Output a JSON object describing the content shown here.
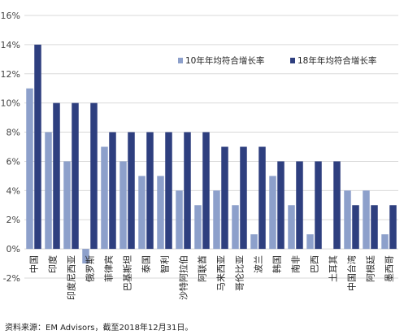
{
  "chart_data": {
    "type": "bar",
    "title": "",
    "xlabel": "",
    "ylabel": "",
    "ylim": [
      -2,
      16
    ],
    "yticks": [
      -2,
      0,
      2,
      4,
      6,
      8,
      10,
      12,
      14,
      16
    ],
    "ytick_labels": [
      "-2%",
      "0%",
      "2%",
      "4%",
      "6%",
      "8%",
      "10%",
      "12%",
      "14%",
      "16%"
    ],
    "grid": true,
    "legend_position": "top-right",
    "categories": [
      "中国",
      "印度",
      "印度尼西亚",
      "俄罗斯",
      "菲律宾",
      "巴基斯坦",
      "泰国",
      "智利",
      "沙特阿拉伯",
      "阿联酋",
      "马来西亚",
      "哥伦比亚",
      "波兰",
      "韩国",
      "南非",
      "巴西",
      "土耳其",
      "中国台湾",
      "阿根廷",
      "墨西哥"
    ],
    "series": [
      {
        "name": "10年年均符合增长率",
        "color": "#8da0cb",
        "values": [
          11,
          8,
          6,
          -1,
          7,
          6,
          5,
          5,
          4,
          3,
          4,
          3,
          1,
          5,
          3,
          1,
          0,
          4,
          4,
          1
        ]
      },
      {
        "name": "18年年均符合增长率",
        "color": "#2e3f7f",
        "values": [
          14,
          10,
          10,
          10,
          8,
          8,
          8,
          8,
          8,
          8,
          7,
          7,
          7,
          6,
          6,
          6,
          6,
          3,
          3,
          3
        ]
      }
    ]
  },
  "source_note": "资料来源：EM Advisors，截至2018年12月31日。"
}
